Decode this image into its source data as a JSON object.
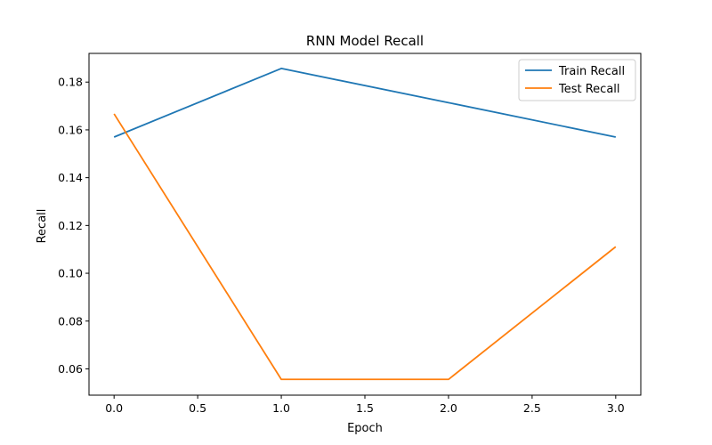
{
  "chart_data": {
    "type": "line",
    "title": "RNN Model Recall",
    "xlabel": "Epoch",
    "ylabel": "Recall",
    "x": [
      0,
      1,
      2,
      3
    ],
    "xlim": [
      -0.15,
      3.15
    ],
    "ylim": [
      0.049,
      0.192
    ],
    "xticks": [
      0.0,
      0.5,
      1.0,
      1.5,
      2.0,
      2.5,
      3.0
    ],
    "xtick_labels": [
      "0.0",
      "0.5",
      "1.0",
      "1.5",
      "2.0",
      "2.5",
      "3.0"
    ],
    "yticks": [
      0.06,
      0.08,
      0.1,
      0.12,
      0.14,
      0.16,
      0.18
    ],
    "ytick_labels": [
      "0.06",
      "0.08",
      "0.10",
      "0.12",
      "0.14",
      "0.16",
      "0.18"
    ],
    "grid": false,
    "legend_position": "top-right",
    "series": [
      {
        "name": "Train Recall",
        "color": "#1f77b4",
        "values": [
          0.157,
          0.1857,
          0.1714,
          0.157
        ]
      },
      {
        "name": "Test Recall",
        "color": "#ff7f0e",
        "values": [
          0.1667,
          0.0556,
          0.0556,
          0.1111
        ]
      }
    ]
  }
}
